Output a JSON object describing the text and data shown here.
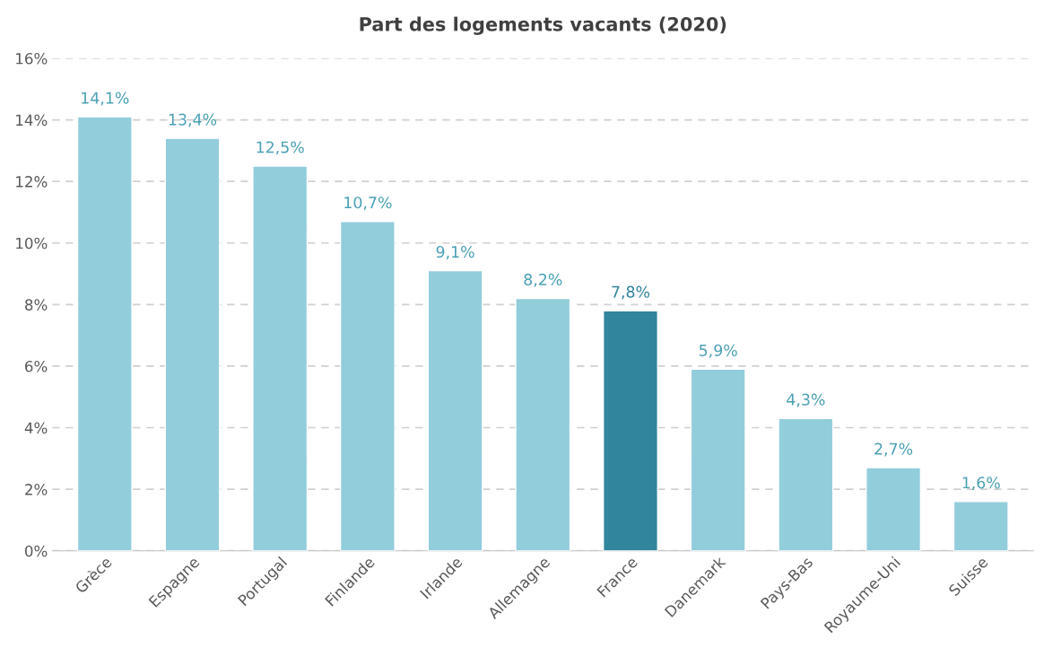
{
  "chart_data": {
    "type": "bar",
    "title": "Part des logements vacants (2020)",
    "categories": [
      "Grèce",
      "Espagne",
      "Portugal",
      "Finlande",
      "Irlande",
      "Allemagne",
      "France",
      "Danemark",
      "Pays-Bas",
      "Royaume-Uni",
      "Suisse"
    ],
    "values": [
      14.1,
      13.4,
      12.5,
      10.7,
      9.1,
      8.2,
      7.8,
      5.9,
      4.3,
      2.7,
      1.6
    ],
    "colors": [
      "#92cddc",
      "#92cddc",
      "#92cddc",
      "#92cddc",
      "#92cddc",
      "#92cddc",
      "#31859c",
      "#92cddc",
      "#92cddc",
      "#92cddc",
      "#92cddc"
    ],
    "value_labels": [
      "14,1%",
      "13,4%",
      "12,5%",
      "10,7%",
      "9,1%",
      "8,2%",
      "7,8%",
      "5,9%",
      "4,3%",
      "2,7%",
      "1,6%"
    ],
    "ylim": [
      0,
      16
    ],
    "yticks": [
      {
        "value": 0,
        "label": "0%"
      },
      {
        "value": 2,
        "label": "2%"
      },
      {
        "value": 4,
        "label": "4%"
      },
      {
        "value": 6,
        "label": "6%"
      },
      {
        "value": 8,
        "label": "8%"
      },
      {
        "value": 10,
        "label": "10%"
      },
      {
        "value": 12,
        "label": "12%"
      },
      {
        "value": 14,
        "label": "14%"
      },
      {
        "value": 16,
        "label": "16%"
      }
    ],
    "grid": "y"
  }
}
